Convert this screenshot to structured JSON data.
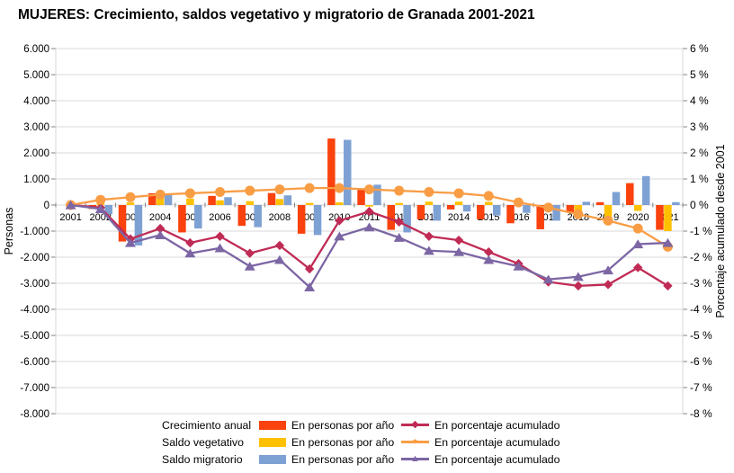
{
  "title": "MUJERES: Crecimiento, saldos vegetativo y migratorio de Granada 2001-2021",
  "legend": {
    "bar_label": "En personas por año",
    "line_label": "En porcentaje acumulado"
  },
  "chart_data": {
    "type": "bar",
    "subtype": "combo-grouped-bars-plus-lines",
    "categories": [
      "2001",
      "2002",
      "2003",
      "2004",
      "2005",
      "2006",
      "2007",
      "2008",
      "2009",
      "2010",
      "2011",
      "2012",
      "2013",
      "2014",
      "2015",
      "2016",
      "2017",
      "2018",
      "2019",
      "2020",
      "2021"
    ],
    "left_axis": {
      "label": "Personas",
      "min": -8000,
      "max": 6000,
      "step": 1000,
      "tick_labels": [
        "6.000",
        "5.000",
        "4.000",
        "3.000",
        "2.000",
        "1.000",
        "0",
        "-1.000",
        "-2.000",
        "-3.000",
        "-4.000",
        "-5.000",
        "-6.000",
        "-7.000",
        "-8.000"
      ]
    },
    "right_axis": {
      "label": "Porcentaje acumulado desde 2001",
      "min": -8,
      "max": 6,
      "step": 1,
      "tick_labels": [
        "6 %",
        "5 %",
        "4 %",
        "3 %",
        "2 %",
        "1 %",
        "0 %",
        "-1 %",
        "-2 %",
        "-3 %",
        "-4 %",
        "-5 %",
        "-6 %",
        "-7 %",
        "-8 %"
      ]
    },
    "grid": "horizontal-only",
    "legend_position": "bottom",
    "bar_series": [
      {
        "key": "crecimiento-anual",
        "name": "Crecimiento anual",
        "color": "#F9420D",
        "values": [
          0,
          -150,
          -1400,
          450,
          -1050,
          350,
          -800,
          460,
          -1100,
          2550,
          580,
          -950,
          -550,
          -170,
          -550,
          -700,
          -930,
          -300,
          110,
          840,
          -950
        ]
      },
      {
        "key": "saldo-vegetativo",
        "name": "Saldo vegetativo",
        "color": "#FFC000",
        "values": [
          0,
          150,
          100,
          270,
          250,
          180,
          150,
          230,
          80,
          100,
          -60,
          80,
          130,
          130,
          120,
          100,
          -100,
          -325,
          -620,
          -225,
          -1000
        ]
      },
      {
        "key": "saldo-migratorio",
        "name": "Saldo migratorio",
        "color": "#7EA1D4",
        "values": [
          0,
          -350,
          -1550,
          430,
          -900,
          300,
          -850,
          370,
          -1150,
          2500,
          780,
          -1050,
          -600,
          -250,
          -400,
          -300,
          -600,
          125,
          500,
          1110,
          110
        ]
      }
    ],
    "line_series": [
      {
        "key": "crecimiento-anual-pct",
        "name": "Crecimiento anual",
        "color": "#C02B55",
        "marker": "diamond",
        "values": [
          0,
          -0.1,
          -1.3,
          -0.9,
          -1.45,
          -1.2,
          -1.85,
          -1.55,
          -2.45,
          -0.6,
          -0.25,
          -0.65,
          -1.2,
          -1.35,
          -1.8,
          -2.25,
          -2.95,
          -3.1,
          -3.05,
          -2.4,
          -3.1
        ]
      },
      {
        "key": "saldo-vegetativo-pct",
        "name": "Saldo vegetativo",
        "color": "#F99D45",
        "marker": "circle",
        "values": [
          0,
          0.2,
          0.3,
          0.4,
          0.45,
          0.5,
          0.55,
          0.6,
          0.65,
          0.65,
          0.6,
          0.55,
          0.5,
          0.45,
          0.35,
          0.1,
          -0.1,
          -0.35,
          -0.6,
          -0.9,
          -1.6
        ]
      },
      {
        "key": "saldo-migratorio-pct",
        "name": "Saldo migratorio",
        "color": "#7C66A4",
        "marker": "triangle",
        "values": [
          0,
          -0.15,
          -1.45,
          -1.15,
          -1.85,
          -1.65,
          -2.35,
          -2.1,
          -3.15,
          -1.2,
          -0.85,
          -1.25,
          -1.75,
          -1.8,
          -2.1,
          -2.35,
          -2.85,
          -2.75,
          -2.5,
          -1.5,
          -1.45
        ]
      }
    ],
    "colors": {
      "grid": "#D9D9D9",
      "tick": "#808080",
      "text": "#000000"
    }
  }
}
